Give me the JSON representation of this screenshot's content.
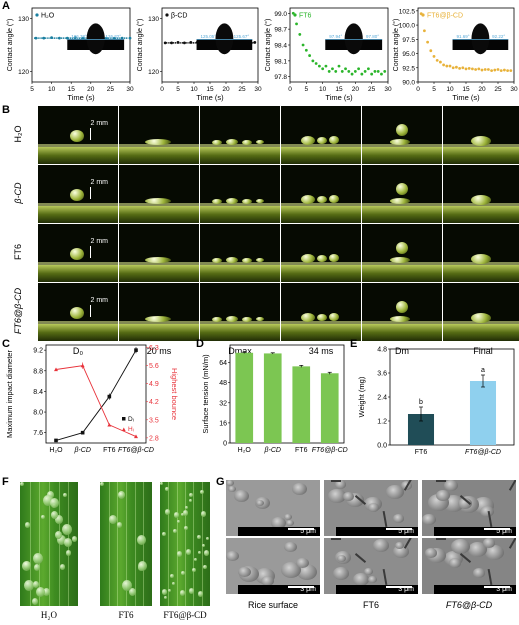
{
  "panels": {
    "A": "A",
    "B": "B",
    "C": "C",
    "D": "D",
    "E": "E",
    "F": "F",
    "G": "G"
  },
  "panelA": {
    "ylabel": "Contact angle (°)",
    "xlabel": "Time (s)",
    "charts": [
      {
        "legend": "H₂O",
        "yticks": [
          "130",
          "120"
        ],
        "xticks": [
          "5",
          "10",
          "15",
          "20",
          "25",
          "30"
        ],
        "angle_left": "126.38°",
        "angle_right": "126.32°",
        "color": "#1a7fa0"
      },
      {
        "legend": "β-CD",
        "yticks": [
          "130",
          "120"
        ],
        "xticks": [
          "0",
          "5",
          "10",
          "15",
          "20",
          "25",
          "30"
        ],
        "angle_left": "125.05°",
        "angle_right": "125.67°",
        "color": "#111111"
      },
      {
        "legend": "FT6",
        "yticks": [
          "99.0",
          "98.7",
          "98.4",
          "98.1",
          "97.8"
        ],
        "xticks": [
          "0",
          "5",
          "10",
          "15",
          "20",
          "25",
          "30"
        ],
        "angle_left": "97.94°",
        "angle_right": "97.80°",
        "color": "#2bb52b"
      },
      {
        "legend": "FT6@β-CD",
        "yticks": [
          "102.5",
          "100.0",
          "97.5",
          "95.0",
          "92.5",
          "90.0"
        ],
        "xticks": [
          "0",
          "5",
          "10",
          "15",
          "20",
          "25",
          "30"
        ],
        "angle_left": "91.69°",
        "angle_right": "92.22°",
        "color": "#e8b23a"
      }
    ]
  },
  "panelB": {
    "rows": [
      "H₂O",
      "β-CD",
      "FT6",
      "FT6@β-CD"
    ],
    "columns": [
      "D₀",
      "20 ms",
      "Dmax",
      "34 ms",
      "Dm",
      "Final"
    ],
    "scale": "2 mm"
  },
  "panelC": {
    "ylabel_left": "Maximum impact diameter",
    "ylabel_right": "Highest bounce",
    "categories": [
      "H₂O",
      "β-CD",
      "FT6",
      "FT6@β-CD"
    ],
    "left_ticks": [
      "9.2",
      "8.8",
      "8.4",
      "8.0",
      "7.6"
    ],
    "right_ticks": [
      "6.3",
      "5.6",
      "4.9",
      "4.2",
      "3.5",
      "2.8"
    ],
    "legend": [
      "Dᵢ",
      "Hᵢ"
    ],
    "colors": {
      "D": "#111111",
      "H": "#e8323a"
    }
  },
  "panelD": {
    "ylabel": "Surface tension (mN/m)",
    "yticks": [
      "64",
      "48",
      "32",
      "16",
      "0"
    ],
    "categories": [
      "H₂O",
      "β-CD",
      "FT6",
      "FT6@β-CD"
    ],
    "color": "#7cc652"
  },
  "panelE": {
    "ylabel": "Weight (mg)",
    "yticks": [
      "4.8",
      "3.6",
      "2.4",
      "1.2",
      "0.0"
    ],
    "categories": [
      "FT6",
      "FT6@β-CD"
    ],
    "letters": [
      "b",
      "a"
    ],
    "colors": [
      "#204d57",
      "#8fd0ee"
    ]
  },
  "panelF": {
    "labels": [
      "H₂O",
      "FT6",
      "FT6@β-CD"
    ]
  },
  "panelG": {
    "labels": [
      "Rice surface",
      "FT6",
      "FT6@β-CD"
    ],
    "scale_top": "5 μm",
    "scale_bottom": "3 μm"
  },
  "chart_data": [
    {
      "type": "scatter",
      "legend": "H₂O",
      "ylabel": "Contact angle (°)",
      "xlabel": "Time (s)",
      "xlim": [
        5,
        30
      ],
      "ylim": [
        118,
        132
      ],
      "series": [
        {
          "name": "H₂O",
          "x": [
            6,
            8,
            10,
            12,
            14,
            16,
            18,
            20,
            22,
            24,
            26,
            28,
            30
          ],
          "y": [
            126.3,
            126.3,
            126.4,
            126.3,
            126.3,
            126.4,
            126.3,
            126.3,
            126.4,
            126.3,
            126.3,
            126.3,
            126.3
          ]
        }
      ]
    },
    {
      "type": "scatter",
      "legend": "β-CD",
      "ylabel": "Contact angle (°)",
      "xlabel": "Time (s)",
      "xlim": [
        0,
        30
      ],
      "ylim": [
        118,
        132
      ],
      "series": [
        {
          "name": "β-CD",
          "x": [
            1,
            3,
            5,
            7,
            9,
            11,
            13,
            15,
            17,
            19,
            21,
            23,
            25,
            27,
            29
          ],
          "y": [
            125.4,
            125.4,
            125.5,
            125.4,
            125.5,
            125.5,
            125.4,
            125.5,
            125.5,
            125.4,
            125.5,
            125.5,
            125.4,
            125.5,
            125.5
          ]
        }
      ]
    },
    {
      "type": "scatter",
      "legend": "FT6",
      "ylabel": "Contact angle (°)",
      "xlabel": "Time (s)",
      "xlim": [
        0,
        30
      ],
      "ylim": [
        97.7,
        99.1
      ],
      "series": [
        {
          "name": "FT6",
          "x": [
            1,
            2,
            3,
            4,
            5,
            6,
            7,
            8,
            9,
            10,
            11,
            12,
            13,
            14,
            15,
            16,
            17,
            18,
            19,
            20,
            21,
            22,
            23,
            24,
            25,
            26,
            27,
            28,
            29
          ],
          "y": [
            99.0,
            98.8,
            98.6,
            98.4,
            98.3,
            98.2,
            98.1,
            98.05,
            98.0,
            97.95,
            98.0,
            97.9,
            97.95,
            97.9,
            98.0,
            97.9,
            97.95,
            97.9,
            97.85,
            97.9,
            97.95,
            97.85,
            97.9,
            97.95,
            97.85,
            97.9,
            97.9,
            97.85,
            97.9
          ]
        }
      ]
    },
    {
      "type": "scatter",
      "legend": "FT6@β-CD",
      "ylabel": "Contact angle (°)",
      "xlabel": "Time (s)",
      "xlim": [
        0,
        30
      ],
      "ylim": [
        90,
        103
      ],
      "series": [
        {
          "name": "FT6@β-CD",
          "x": [
            1,
            2,
            3,
            4,
            5,
            6,
            7,
            8,
            9,
            10,
            11,
            12,
            13,
            14,
            15,
            16,
            17,
            18,
            19,
            20,
            21,
            22,
            23,
            24,
            25,
            26,
            27,
            28,
            29
          ],
          "y": [
            102.0,
            99.0,
            97.0,
            95.5,
            94.5,
            93.8,
            93.5,
            93.0,
            92.8,
            92.8,
            92.5,
            92.6,
            92.4,
            92.5,
            92.3,
            92.4,
            92.3,
            92.2,
            92.3,
            92.1,
            92.2,
            92.2,
            92.0,
            92.1,
            92.2,
            92.0,
            92.1,
            92.0,
            92.0
          ]
        }
      ]
    },
    {
      "type": "line",
      "ylabel": "Maximum impact diameter",
      "categories": [
        "H₂O",
        "β-CD",
        "FT6",
        "FT6@β-CD"
      ],
      "ylim": [
        7.4,
        9.3
      ],
      "y2lim": [
        2.6,
        6.4
      ],
      "series": [
        {
          "name": "Dᵢ",
          "axis": "left",
          "values": [
            7.45,
            7.6,
            8.3,
            9.2
          ],
          "errors": [
            0.02,
            0.02,
            0.06,
            0.06
          ]
        },
        {
          "name": "Hᵢ",
          "axis": "right",
          "values": [
            5.45,
            5.6,
            3.3,
            2.85
          ],
          "errors": [
            0.05,
            0.12,
            0.05,
            0.05
          ]
        }
      ]
    },
    {
      "type": "bar",
      "ylabel": "Surface tension (mN/m)",
      "categories": [
        "H₂O",
        "β-CD",
        "FT6",
        "FT6@β-CD"
      ],
      "values": [
        71.8,
        71.3,
        61.0,
        55.5
      ],
      "errors": [
        0.5,
        0.5,
        0.8,
        0.8
      ],
      "ylim": [
        0,
        78
      ]
    },
    {
      "type": "bar",
      "ylabel": "Weight (mg)",
      "categories": [
        "FT6",
        "FT6@β-CD"
      ],
      "values": [
        1.55,
        3.2
      ],
      "errors": [
        0.35,
        0.3
      ],
      "ylim": [
        0,
        4.8
      ]
    }
  ]
}
